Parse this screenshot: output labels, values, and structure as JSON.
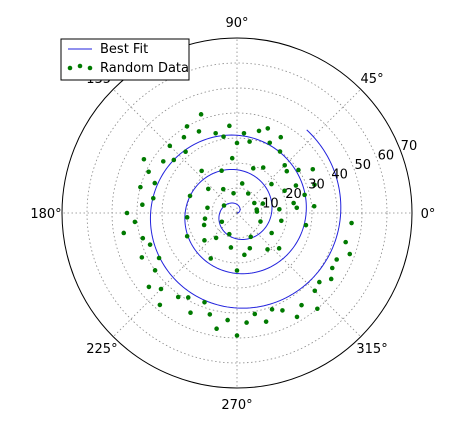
{
  "chart_data": {
    "type": "scatter",
    "projection": "polar",
    "grid": true,
    "legend_position": "top-left",
    "r_range": [
      0,
      70
    ],
    "radial_ticks": [
      "10",
      "20",
      "30",
      "40",
      "50",
      "60",
      "70"
    ],
    "radial_tick_values": [
      10,
      20,
      30,
      40,
      50,
      60,
      70
    ],
    "angle_ticks": [
      "0°",
      "45°",
      "90°",
      "135°",
      "180°",
      "225°",
      "270°",
      "315°"
    ],
    "angle_tick_values": [
      0,
      45,
      90,
      135,
      180,
      225,
      270,
      315
    ],
    "colors": {
      "fit": "#2222dd",
      "data": "#007a00",
      "grid": "#888888",
      "frame": "#000000"
    },
    "series": [
      {
        "name": "Best Fit",
        "kind": "line",
        "spiral": {
          "r_per_radian": 2.2,
          "theta_start_deg": 0,
          "theta_end_deg": 1130
        }
      },
      {
        "name": "Random Data",
        "kind": "scatter",
        "points": [
          [
            4,
            8
          ],
          [
            10,
            8
          ],
          [
            30,
            8
          ],
          [
            60,
            9
          ],
          [
            100,
            8
          ],
          [
            150,
            6
          ],
          [
            210,
            7
          ],
          [
            250,
            9
          ],
          [
            300,
            11
          ],
          [
            340,
            10
          ],
          [
            20,
            11
          ],
          [
            80,
            12
          ],
          [
            120,
            11
          ],
          [
            170,
            12
          ],
          [
            200,
            14
          ],
          [
            230,
            13
          ],
          [
            260,
            14
          ],
          [
            290,
            15
          ],
          [
            330,
            16
          ],
          [
            5,
            17
          ],
          [
            40,
            18
          ],
          [
            70,
            19
          ],
          [
            110,
            18
          ],
          [
            140,
            15
          ],
          [
            190,
            13
          ],
          [
            220,
            17
          ],
          [
            280,
            17
          ],
          [
            310,
            19
          ],
          [
            350,
            18
          ],
          [
            25,
            21
          ],
          [
            365,
            24
          ],
          [
            375,
            28
          ],
          [
            385,
            26
          ],
          [
            395,
            30
          ],
          [
            405,
            27
          ],
          [
            415,
            30
          ],
          [
            425,
            31
          ],
          [
            435,
            34
          ],
          [
            445,
            32
          ],
          [
            455,
            35
          ],
          [
            465,
            33
          ],
          [
            475,
            36
          ],
          [
            485,
            37
          ],
          [
            495,
            38
          ],
          [
            505,
            36
          ],
          [
            515,
            39
          ],
          [
            525,
            40
          ],
          [
            535,
            38
          ],
          [
            545,
            41
          ],
          [
            555,
            39
          ],
          [
            565,
            42
          ],
          [
            575,
            40
          ],
          [
            585,
            43
          ],
          [
            595,
            41
          ],
          [
            605,
            44
          ],
          [
            615,
            42
          ],
          [
            625,
            43
          ],
          [
            635,
            44
          ],
          [
            645,
            45
          ],
          [
            655,
            43
          ],
          [
            665,
            45
          ],
          [
            675,
            44
          ],
          [
            685,
            46
          ],
          [
            695,
            44
          ],
          [
            705,
            45
          ],
          [
            715,
            46
          ],
          [
            365,
            31
          ],
          [
            380,
            33
          ],
          [
            400,
            26
          ],
          [
            420,
            35
          ],
          [
            440,
            29
          ],
          [
            460,
            31
          ],
          [
            480,
            40
          ],
          [
            500,
            33
          ],
          [
            520,
            35
          ],
          [
            540,
            44
          ],
          [
            560,
            37
          ],
          [
            580,
            46
          ],
          [
            600,
            39
          ],
          [
            620,
            47
          ],
          [
            640,
            41
          ],
          [
            660,
            48
          ],
          [
            680,
            43
          ],
          [
            700,
            48
          ],
          [
            350,
            28
          ],
          [
            390,
            35
          ],
          [
            430,
            36
          ],
          [
            450,
            28
          ],
          [
            470,
            42
          ],
          [
            490,
            32
          ],
          [
            510,
            43
          ],
          [
            530,
            34
          ],
          [
            550,
            46
          ],
          [
            570,
            36
          ],
          [
            590,
            48
          ],
          [
            610,
            38
          ],
          [
            630,
            49
          ],
          [
            650,
            41
          ],
          [
            670,
            50
          ],
          [
            690,
            44
          ],
          [
            10,
            23
          ],
          [
            60,
            21
          ],
          [
            95,
            22
          ],
          [
            130,
            22
          ],
          [
            160,
            20
          ],
          [
            185,
            20
          ],
          [
            205,
            22
          ],
          [
            240,
            21
          ],
          [
            270,
            23
          ],
          [
            320,
            22
          ]
        ]
      }
    ]
  }
}
